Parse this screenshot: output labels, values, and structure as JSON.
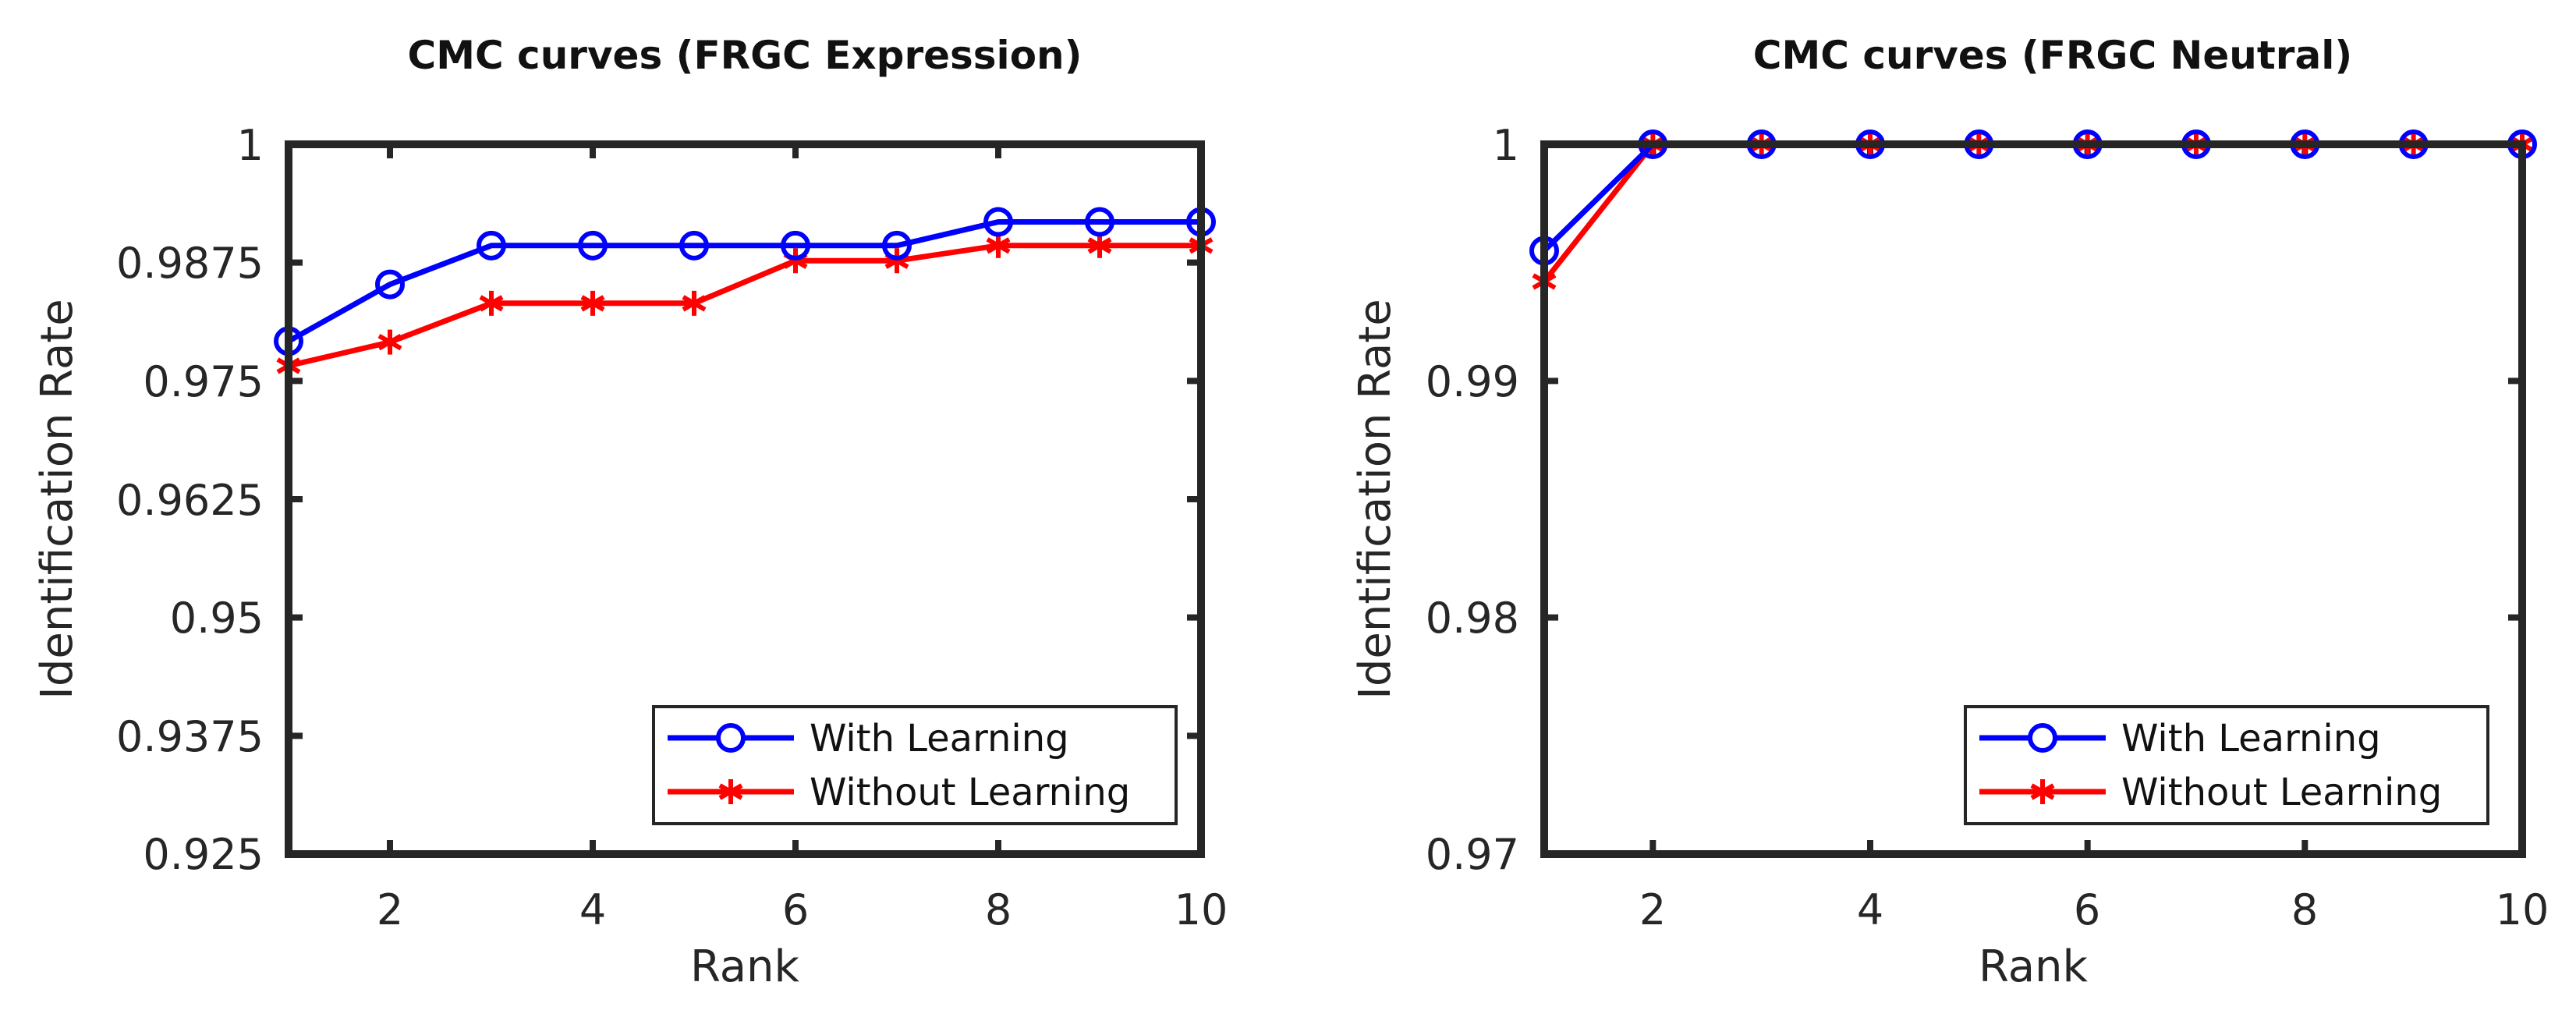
{
  "chart_data": [
    {
      "type": "line",
      "title": "CMC curves (FRGC Expression)",
      "xlabel": "Rank",
      "ylabel": "Identification Rate",
      "xlim": [
        1,
        10
      ],
      "ylim": [
        0.925,
        1
      ],
      "xticks": [
        2,
        4,
        6,
        8,
        10
      ],
      "xtick_labels": [
        "2",
        "4",
        "6",
        "8",
        "10"
      ],
      "yticks": [
        0.925,
        0.9375,
        0.95,
        0.9625,
        0.975,
        0.9875,
        1
      ],
      "ytick_labels": [
        "0.925",
        "0.9375",
        "0.95",
        "0.9625",
        "0.975",
        "0.9875",
        "1"
      ],
      "legend_position": "bottom-right",
      "x": [
        1,
        2,
        3,
        4,
        5,
        6,
        7,
        8,
        9,
        10
      ],
      "series": [
        {
          "name": "With Learning",
          "color": "#0000ff",
          "marker": "circle",
          "values": [
            0.9792,
            0.9852,
            0.9893,
            0.9893,
            0.9893,
            0.9893,
            0.9893,
            0.9918,
            0.9918,
            0.9918
          ]
        },
        {
          "name": "Without Learning",
          "color": "#ff0000",
          "marker": "asterisk",
          "values": [
            0.9766,
            0.9791,
            0.9832,
            0.9832,
            0.9832,
            0.9877,
            0.9877,
            0.9893,
            0.9893,
            0.9893
          ]
        }
      ]
    },
    {
      "type": "line",
      "title": "CMC curves (FRGC Neutral)",
      "xlabel": "Rank",
      "ylabel": "Identification Rate",
      "xlim": [
        1,
        10
      ],
      "ylim": [
        0.97,
        1
      ],
      "xticks": [
        2,
        4,
        6,
        8,
        10
      ],
      "xtick_labels": [
        "2",
        "4",
        "6",
        "8",
        "10"
      ],
      "yticks": [
        0.97,
        0.98,
        0.99,
        1
      ],
      "ytick_labels": [
        "0.97",
        "0.98",
        "0.99",
        "1"
      ],
      "legend_position": "bottom-right",
      "x": [
        1,
        2,
        3,
        4,
        5,
        6,
        7,
        8,
        9,
        10
      ],
      "series": [
        {
          "name": "With Learning",
          "color": "#0000ff",
          "marker": "circle",
          "values": [
            0.9955,
            1,
            1,
            1,
            1,
            1,
            1,
            1,
            1,
            1
          ]
        },
        {
          "name": "Without Learning",
          "color": "#ff0000",
          "marker": "asterisk",
          "values": [
            0.9942,
            1,
            1,
            1,
            1,
            1,
            1,
            1,
            1,
            1
          ]
        }
      ]
    }
  ]
}
